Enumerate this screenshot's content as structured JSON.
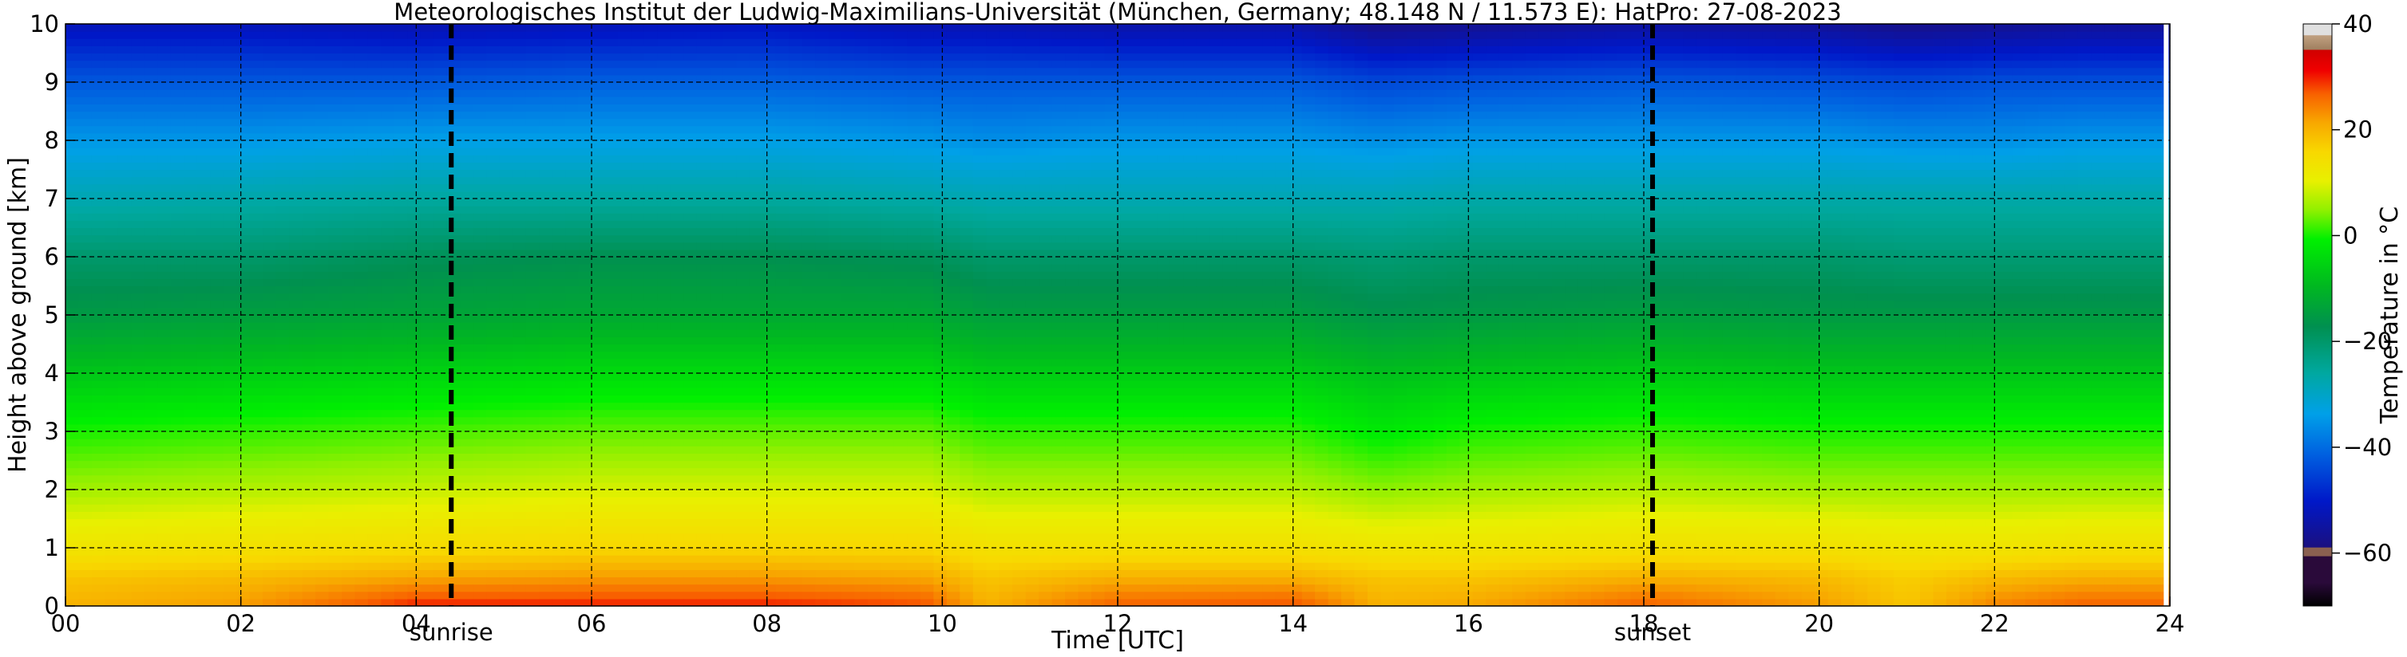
{
  "title": "Meteorologisches Institut der Ludwig-Maximilians-Universität (München, Germany; 48.148 N / 11.573 E):    HatPro: 27-08-2023",
  "colorbar": {
    "label": "Temperature in °C",
    "ticks": [
      "40",
      "20",
      "0",
      "−20",
      "−40",
      "−60"
    ],
    "colors": [
      "#000000",
      "#2a0a3a",
      "#8a6050",
      "#1a1080",
      "#0018c8",
      "#0060e0",
      "#00a0e8",
      "#00a8a0",
      "#009050",
      "#00b820",
      "#00f000",
      "#90f000",
      "#e8f000",
      "#f8d800",
      "#f8a800",
      "#f86000",
      "#f00000",
      "#d00000",
      "#c0a080",
      "#e0e0e0"
    ]
  },
  "chart_data": {
    "type": "heatmap",
    "title": "Meteorologisches Institut der Ludwig-Maximilians-Universität (München, Germany; 48.148 N / 11.573 E):    HatPro: 27-08-2023",
    "xlabel": "Time [UTC]",
    "ylabel": "Height above ground [km]",
    "xlim": [
      0,
      24
    ],
    "ylim": [
      0,
      10
    ],
    "clim": [
      -70,
      40
    ],
    "colorbar_label": "Temperature in °C",
    "x_tick_labels": [
      "00",
      "02",
      "04",
      "06",
      "08",
      "10",
      "12",
      "14",
      "16",
      "18",
      "20",
      "22",
      "24"
    ],
    "y_tick_labels": [
      "0",
      "1",
      "2",
      "3",
      "4",
      "5",
      "6",
      "7",
      "8",
      "9",
      "10"
    ],
    "grid": true,
    "heights_km": [
      0,
      0.5,
      1,
      2,
      3,
      4,
      5,
      6,
      7,
      8,
      9,
      10
    ],
    "times_utc": [
      0,
      2,
      4,
      6,
      8,
      9.8,
      10.5,
      12,
      14,
      15,
      16,
      18,
      20,
      21,
      22,
      23,
      24
    ],
    "temperature_c": [
      [
        20,
        19,
        21,
        22,
        22,
        21,
        18,
        17,
        16,
        15,
        13,
        6,
        0,
        -7,
        -15,
        -20,
        -24,
        -28,
        -35,
        -42,
        -48,
        -55
      ],
      [
        21,
        20,
        22,
        21,
        21,
        20,
        18,
        17,
        15,
        14,
        12,
        6,
        0,
        -7,
        -15,
        -20,
        -24,
        -28,
        -35,
        -42,
        -48,
        -55
      ],
      [
        25,
        24,
        22,
        20,
        19,
        18,
        17,
        15,
        14,
        13,
        11,
        5,
        0,
        -7,
        -15,
        -20,
        -24,
        -28,
        -35,
        -42,
        -48,
        -55
      ]
    ],
    "temperature_c_by_time": {
      "00": [
        20,
        18,
        13,
        6,
        0,
        -7,
        -15,
        -20,
        -28,
        -35,
        -42,
        -52
      ],
      "02": [
        22,
        19,
        14,
        7,
        1,
        -6,
        -14,
        -20,
        -27,
        -35,
        -42,
        -52
      ],
      "04": [
        30,
        21,
        15,
        8,
        2,
        -5,
        -13,
        -18,
        -26,
        -34,
        -42,
        -53
      ],
      "06": [
        30,
        22,
        16,
        9,
        3,
        -4,
        -12,
        -17,
        -26,
        -34,
        -41,
        -52
      ],
      "08": [
        30,
        22,
        16,
        9,
        3,
        -4,
        -12,
        -17,
        -26,
        -34,
        -41,
        -51
      ],
      "09.8": [
        28,
        21,
        16,
        9,
        3,
        -4,
        -12,
        -18,
        -27,
        -35,
        -42,
        -53
      ],
      "10.5": [
        20,
        18,
        14,
        7,
        1,
        -6,
        -14,
        -20,
        -28,
        -36,
        -42,
        -53
      ],
      "12": [
        27,
        20,
        14,
        7,
        1,
        -6,
        -14,
        -20,
        -28,
        -35,
        -42,
        -54
      ],
      "14": [
        28,
        20,
        14,
        7,
        1,
        -6,
        -14,
        -20,
        -28,
        -35,
        -42,
        -54
      ],
      "15": [
        20,
        18,
        13,
        5,
        -2,
        -8,
        -16,
        -21,
        -28,
        -36,
        -44,
        -58
      ],
      "16": [
        21,
        18,
        13,
        6,
        0,
        -7,
        -15,
        -20,
        -27,
        -35,
        -43,
        -57
      ],
      "18": [
        27,
        20,
        14,
        7,
        1,
        -6,
        -14,
        -20,
        -27,
        -35,
        -42,
        -55
      ],
      "20": [
        22,
        19,
        14,
        6,
        0,
        -7,
        -15,
        -20,
        -27,
        -35,
        -43,
        -56
      ],
      "21": [
        18,
        17,
        13,
        6,
        0,
        -7,
        -15,
        -21,
        -27,
        -36,
        -44,
        -58
      ],
      "22": [
        24,
        19,
        13,
        6,
        0,
        -7,
        -15,
        -21,
        -27,
        -36,
        -43,
        -57
      ],
      "23": [
        27,
        20,
        14,
        6,
        0,
        -7,
        -15,
        -21,
        -27,
        -35,
        -43,
        -56
      ],
      "24": [
        27,
        20,
        14,
        6,
        0,
        -7,
        -15,
        -21,
        -27,
        -35,
        -43,
        -56
      ]
    },
    "annotations": [
      {
        "text": "sunrise",
        "x": 4.4
      },
      {
        "text": "sunset",
        "x": 18.1
      }
    ]
  }
}
